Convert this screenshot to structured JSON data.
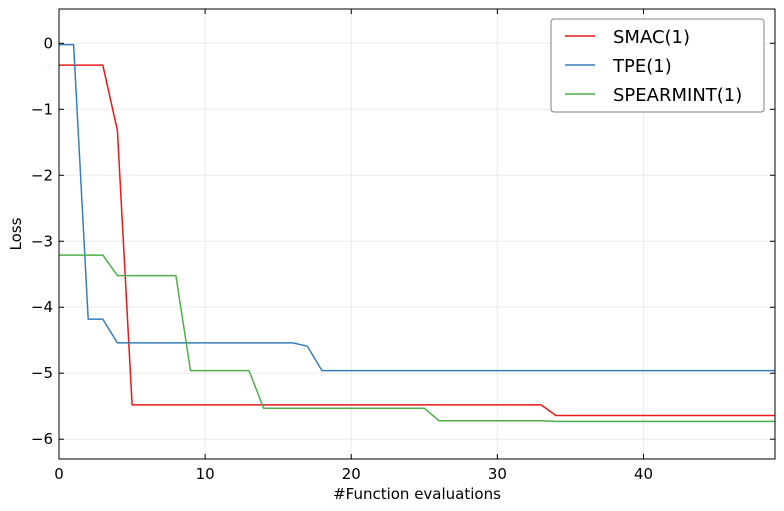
{
  "chart_data": {
    "type": "line",
    "xlabel": "#Function evaluations",
    "ylabel": "Loss",
    "xlim": [
      0,
      49
    ],
    "ylim": [
      -6.3,
      0.52
    ],
    "xticks": [
      0,
      10,
      20,
      30,
      40
    ],
    "yticks": [
      0,
      -1,
      -2,
      -3,
      -4,
      -5,
      -6
    ],
    "ytick_labels": [
      "0",
      "−1",
      "−2",
      "−3",
      "−4",
      "−5",
      "−6"
    ],
    "grid": true,
    "legend_position": "top-right",
    "series": [
      {
        "name": "SMAC(1)",
        "color": "#e41a1c",
        "points": [
          [
            0,
            -0.33
          ],
          [
            3,
            -0.33
          ],
          [
            4,
            -1.32
          ],
          [
            5,
            -5.48
          ],
          [
            33,
            -5.48
          ],
          [
            34,
            -5.64
          ],
          [
            49,
            -5.64
          ]
        ]
      },
      {
        "name": "TPE(1)",
        "color": "#377eb8",
        "points": [
          [
            0,
            -0.02
          ],
          [
            1,
            -0.02
          ],
          [
            2,
            -4.18
          ],
          [
            3,
            -4.18
          ],
          [
            4,
            -4.54
          ],
          [
            16,
            -4.54
          ],
          [
            17,
            -4.59
          ],
          [
            18,
            -4.96
          ],
          [
            49,
            -4.96
          ]
        ]
      },
      {
        "name": "SPEARMINT(1)",
        "color": "#4daf4a",
        "points": [
          [
            0,
            -3.21
          ],
          [
            3,
            -3.21
          ],
          [
            4,
            -3.52
          ],
          [
            8,
            -3.52
          ],
          [
            9,
            -4.96
          ],
          [
            13,
            -4.96
          ],
          [
            14,
            -5.53
          ],
          [
            25,
            -5.53
          ],
          [
            26,
            -5.72
          ],
          [
            33,
            -5.72
          ],
          [
            34,
            -5.73
          ],
          [
            49,
            -5.73
          ]
        ]
      }
    ]
  }
}
